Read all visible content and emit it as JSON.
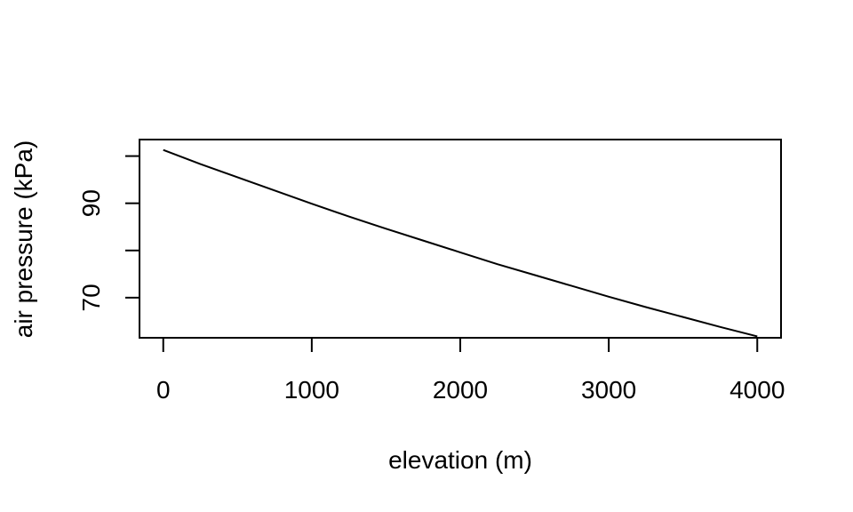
{
  "chart_data": {
    "type": "line",
    "title": "",
    "xlabel": "elevation (m)",
    "ylabel": "air pressure (kPa)",
    "xlim": [
      -160,
      4160
    ],
    "ylim": [
      61.5,
      103.5
    ],
    "x_ticks": [
      0,
      1000,
      2000,
      3000,
      4000
    ],
    "x_tick_labels": [
      "0",
      "1000",
      "2000",
      "3000",
      "4000"
    ],
    "y_ticks": [
      70,
      80,
      90,
      100
    ],
    "y_tick_labels": [
      "70",
      "",
      "90",
      ""
    ],
    "grid": false,
    "legend": "none",
    "line_color": "#000000",
    "series": [
      {
        "x": [
          0,
          250,
          500,
          750,
          1000,
          1250,
          1500,
          1750,
          2000,
          2250,
          2500,
          2750,
          3000,
          3250,
          3500,
          3750,
          4000
        ],
        "y": [
          101.3,
          98.3,
          95.5,
          92.7,
          89.9,
          87.2,
          84.6,
          82.1,
          79.6,
          77.1,
          74.8,
          72.5,
          70.2,
          68.0,
          65.9,
          63.8,
          61.8
        ]
      }
    ]
  }
}
